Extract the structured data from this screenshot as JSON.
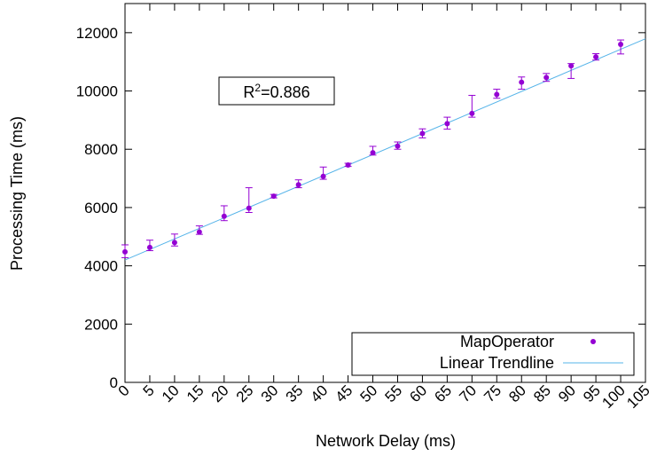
{
  "chart_data": {
    "type": "scatter",
    "xlabel": "Network Delay (ms)",
    "ylabel": "Processing Time (ms)",
    "xlim": [
      0,
      105
    ],
    "ylim": [
      0,
      13000
    ],
    "x_ticks": [
      0,
      5,
      10,
      15,
      20,
      25,
      30,
      35,
      40,
      45,
      50,
      55,
      60,
      65,
      70,
      75,
      80,
      85,
      90,
      95,
      100,
      105
    ],
    "y_ticks": [
      0,
      2000,
      4000,
      6000,
      8000,
      10000,
      12000
    ],
    "x_tick_labels": [
      "0",
      "5",
      "10",
      "15",
      "20",
      "25",
      "30",
      "35",
      "40",
      "45",
      "50",
      "55",
      "60",
      "65",
      "70",
      "75",
      "80",
      "85",
      "90",
      "95",
      "100",
      "105"
    ],
    "y_tick_labels": [
      "0",
      "2000",
      "4000",
      "6000",
      "8000",
      "10000",
      "12000"
    ],
    "grid": false,
    "legend_position": "bottom-right",
    "annotation": {
      "prefix": "R",
      "superscript": "2",
      "suffix": "=0.886"
    },
    "series": [
      {
        "name": "MapOperator",
        "style": "points-with-error-bars",
        "color": "#9400d3",
        "x": [
          0,
          5,
          10,
          15,
          20,
          25,
          30,
          35,
          40,
          45,
          50,
          55,
          60,
          65,
          70,
          75,
          80,
          85,
          90,
          95,
          100
        ],
        "y": [
          4480,
          4630,
          4800,
          5160,
          5700,
          5980,
          6390,
          6780,
          7070,
          7460,
          7880,
          8110,
          8540,
          8880,
          9230,
          9880,
          10300,
          10460,
          10860,
          11170,
          11600
        ],
        "err_low": [
          4280,
          4520,
          4680,
          5080,
          5550,
          5830,
          6330,
          6680,
          6970,
          7410,
          7800,
          8000,
          8390,
          8690,
          9100,
          9750,
          10060,
          10330,
          10430,
          11060,
          11270
        ],
        "err_high": [
          4720,
          4880,
          5090,
          5370,
          6060,
          6680,
          6450,
          6950,
          7390,
          7520,
          8100,
          8250,
          8700,
          9100,
          9850,
          10060,
          10480,
          10600,
          10940,
          11280,
          11750
        ]
      },
      {
        "name": "Linear Trendline",
        "style": "line",
        "color": "#56b4e9",
        "slope": 72.3,
        "intercept": 4200
      }
    ]
  }
}
